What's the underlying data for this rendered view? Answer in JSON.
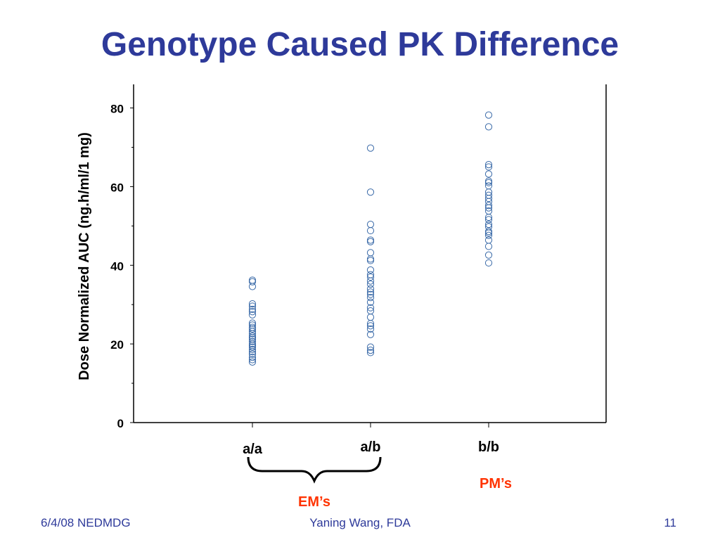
{
  "slide": {
    "title": "Genotype Caused PK Difference",
    "footer_left": "6/4/08 NEDMDG",
    "footer_center": "Yaning Wang, FDA",
    "footer_right": "11"
  },
  "colors": {
    "title": "#2e3a9a",
    "marker": "#3a6aa8",
    "annotation": "#ff3300",
    "axis": "#000000"
  },
  "chart_data": {
    "type": "scatter",
    "ylabel": "Dose Normalized AUC (ng.h/ml/1 mg)",
    "xlabel": "",
    "categories": [
      "a/a",
      "a/b",
      "b/b"
    ],
    "ylim": [
      0,
      86
    ],
    "yticks": [
      0,
      20,
      40,
      60,
      80
    ],
    "grid": false,
    "series": [
      {
        "category": "a/a",
        "values": [
          36.2,
          35.8,
          34.6,
          30.2,
          29.6,
          28.8,
          28.2,
          27.4,
          25.3,
          24.8,
          24.2,
          23.8,
          23.2,
          22.6,
          22.0,
          21.6,
          21.2,
          20.6,
          20.0,
          19.6,
          19.2,
          18.6,
          18.0,
          17.4,
          16.6,
          16.0,
          15.4
        ]
      },
      {
        "category": "a/b",
        "values": [
          69.8,
          58.6,
          50.4,
          48.8,
          46.4,
          46.0,
          43.2,
          41.6,
          41.2,
          38.8,
          37.6,
          37.0,
          36.0,
          35.2,
          34.0,
          33.2,
          32.6,
          31.8,
          30.6,
          29.2,
          28.4,
          26.8,
          25.2,
          24.6,
          23.8,
          22.4,
          19.2,
          18.4,
          17.8
        ]
      },
      {
        "category": "b/b",
        "values": [
          78.2,
          75.2,
          65.6,
          65.0,
          63.2,
          61.4,
          61.0,
          60.2,
          58.6,
          57.8,
          57.0,
          56.2,
          55.2,
          54.6,
          53.8,
          52.2,
          51.6,
          50.4,
          49.8,
          48.6,
          48.2,
          47.6,
          46.4,
          44.8,
          42.6,
          40.6
        ]
      }
    ],
    "annotations": [
      {
        "text": "EM’s",
        "spans": [
          "a/a",
          "a/b"
        ]
      },
      {
        "text": "PM’s",
        "spans": [
          "b/b"
        ]
      }
    ]
  }
}
